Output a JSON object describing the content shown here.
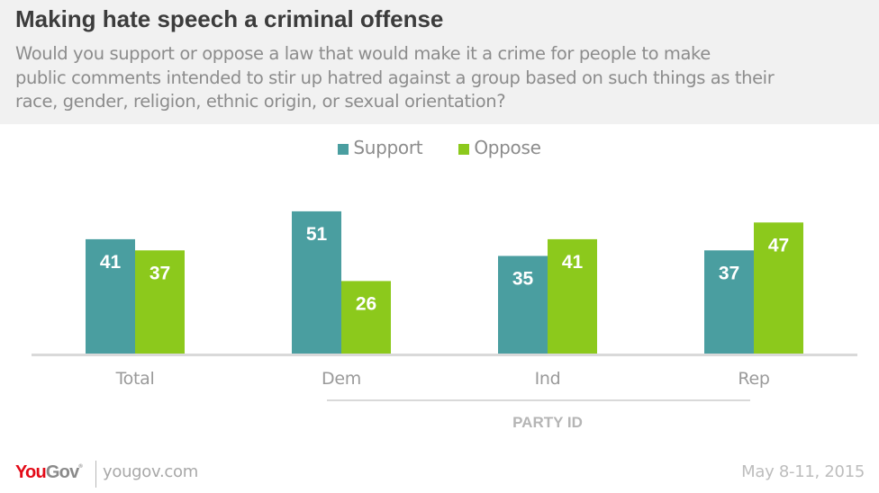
{
  "header": {
    "title": "Making hate speech a criminal offense",
    "subtitle_lines": [
      "Would you support or oppose a law that would make it a crime for people to make",
      "public comments intended to stir up hatred against a group based on such things as their",
      "race, gender, religion, ethnic origin, or sexual orientation?"
    ]
  },
  "colors": {
    "support": "#4a9ea0",
    "oppose": "#8cc91c",
    "header_bg": "#f1f1f1",
    "brand_red": "#e30a17"
  },
  "chart_data": {
    "type": "bar",
    "title": "Making hate speech a criminal offense",
    "categories": [
      "Total",
      "Dem",
      "Ind",
      "Rep"
    ],
    "series": [
      {
        "name": "Support",
        "values": [
          41,
          51,
          35,
          37
        ]
      },
      {
        "name": "Oppose",
        "values": [
          37,
          26,
          41,
          47
        ]
      }
    ],
    "group_label": {
      "text": "PARTY ID",
      "spans": [
        "Dem",
        "Ind",
        "Rep"
      ]
    },
    "xlabel": "",
    "ylabel": "",
    "ylim": [
      0,
      55
    ],
    "grid": false,
    "legend": "top-center",
    "data_labels": true
  },
  "legend": [
    {
      "name": "Support",
      "color": "#4a9ea0"
    },
    {
      "name": "Oppose",
      "color": "#8cc91c"
    }
  ],
  "footer": {
    "logo_you": "You",
    "logo_gov": "Gov",
    "logo_reg": "®",
    "site": "yougov.com",
    "date": "May 8-11, 2015"
  }
}
